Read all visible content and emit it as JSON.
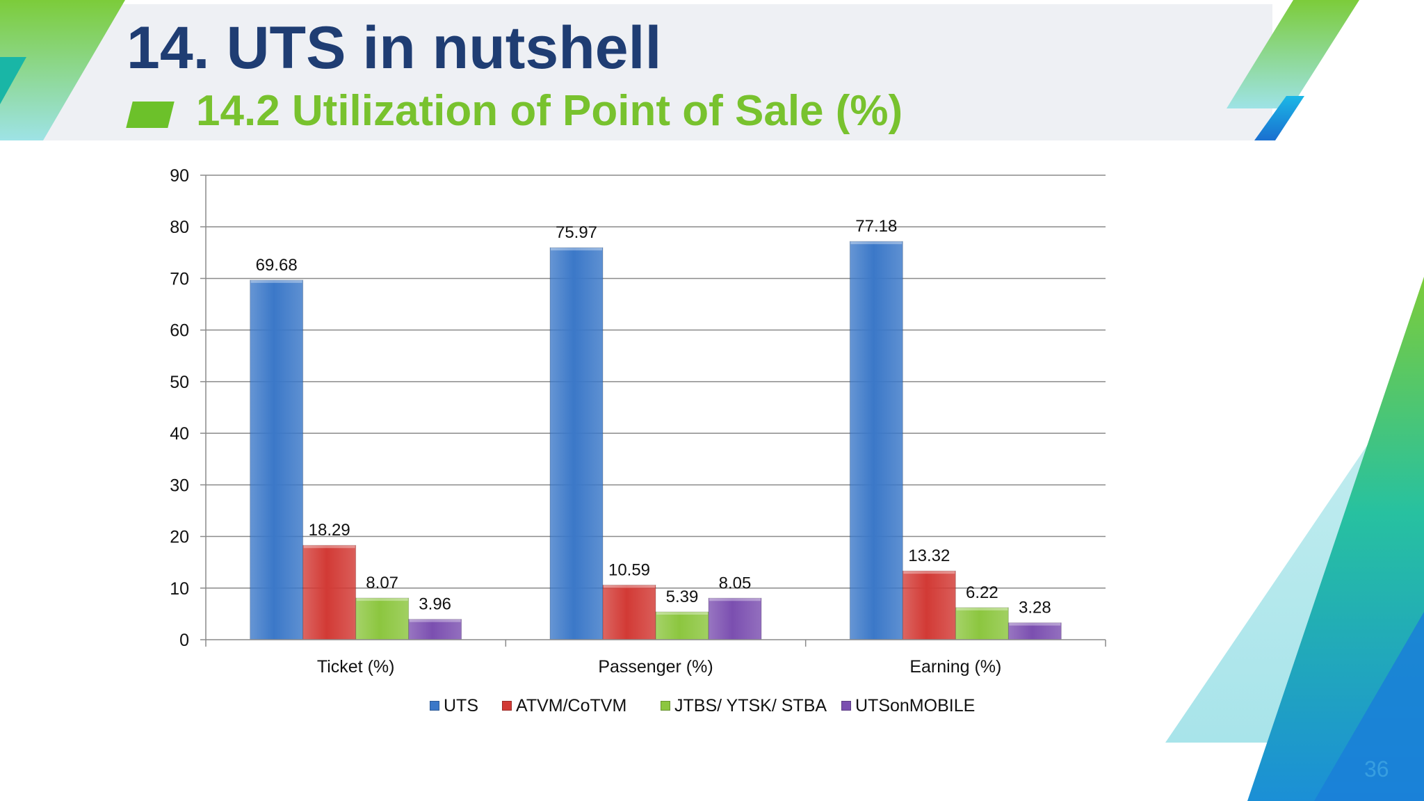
{
  "slide": {
    "title": "14. UTS in nutshell",
    "subtitle": "14.2 Utilization of Point of Sale (%)",
    "page_number": "36"
  },
  "colors": {
    "title": "#1f3d73",
    "subtitle": "#78c22e",
    "header_band": "#eef0f4"
  },
  "chart_data": {
    "type": "bar",
    "title": "",
    "xlabel": "",
    "ylabel": "",
    "ylim": [
      0,
      90
    ],
    "yticks": [
      0,
      10,
      20,
      30,
      40,
      50,
      60,
      70,
      80,
      90
    ],
    "grid": true,
    "legend_position": "bottom",
    "categories": [
      "Ticket (%)",
      "Passenger (%)",
      "Earning (%)"
    ],
    "series": [
      {
        "name": "UTS",
        "color": "#3b78c8",
        "values": [
          69.68,
          75.97,
          77.18
        ],
        "labels": [
          "69.68",
          "75.97",
          "77.18"
        ]
      },
      {
        "name": "ATVM/CoTVM",
        "color": "#d23a35",
        "values": [
          18.29,
          10.59,
          13.32
        ],
        "labels": [
          "18.29",
          "10.59",
          "13.32"
        ]
      },
      {
        "name": "JTBS/ YTSK/ STBA",
        "color": "#8cc63f",
        "values": [
          8.07,
          5.39,
          6.22
        ],
        "labels": [
          "8.07",
          "5.39",
          "6.22"
        ]
      },
      {
        "name": "UTSonMOBILE",
        "color": "#7b4fb0",
        "values": [
          3.96,
          8.05,
          3.28
        ],
        "labels": [
          "3.96",
          "8.05",
          "3.28"
        ]
      }
    ]
  }
}
